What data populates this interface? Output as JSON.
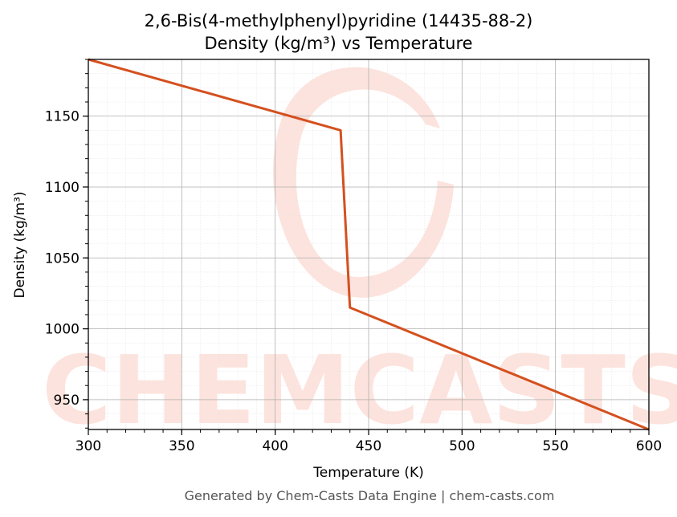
{
  "chart_data": {
    "type": "line",
    "title": "2,6-Bis(4-methylphenyl)pyridine (14435-88-2)",
    "subtitle": "Density (kg/m³) vs Temperature",
    "xlabel": "Temperature (K)",
    "ylabel": "Density (kg/m³)",
    "xlim": [
      300,
      600
    ],
    "ylim": [
      929,
      1190
    ],
    "xticks": [
      300,
      350,
      400,
      450,
      500,
      550,
      600
    ],
    "yticks": [
      950,
      1000,
      1050,
      1100,
      1150
    ],
    "grid": true,
    "series": [
      {
        "x": [
          300,
          435,
          440,
          600
        ],
        "y": [
          1190,
          1140,
          1015,
          929
        ]
      }
    ],
    "watermark": "CHEMCASTS"
  },
  "colors": {
    "line": "#d4501f",
    "watermark": "#fde3dd",
    "grid_major": "#b0b0b0",
    "grid_minor": "#e6e6e6"
  },
  "footer": "Generated by Chem-Casts Data Engine | chem-casts.com"
}
